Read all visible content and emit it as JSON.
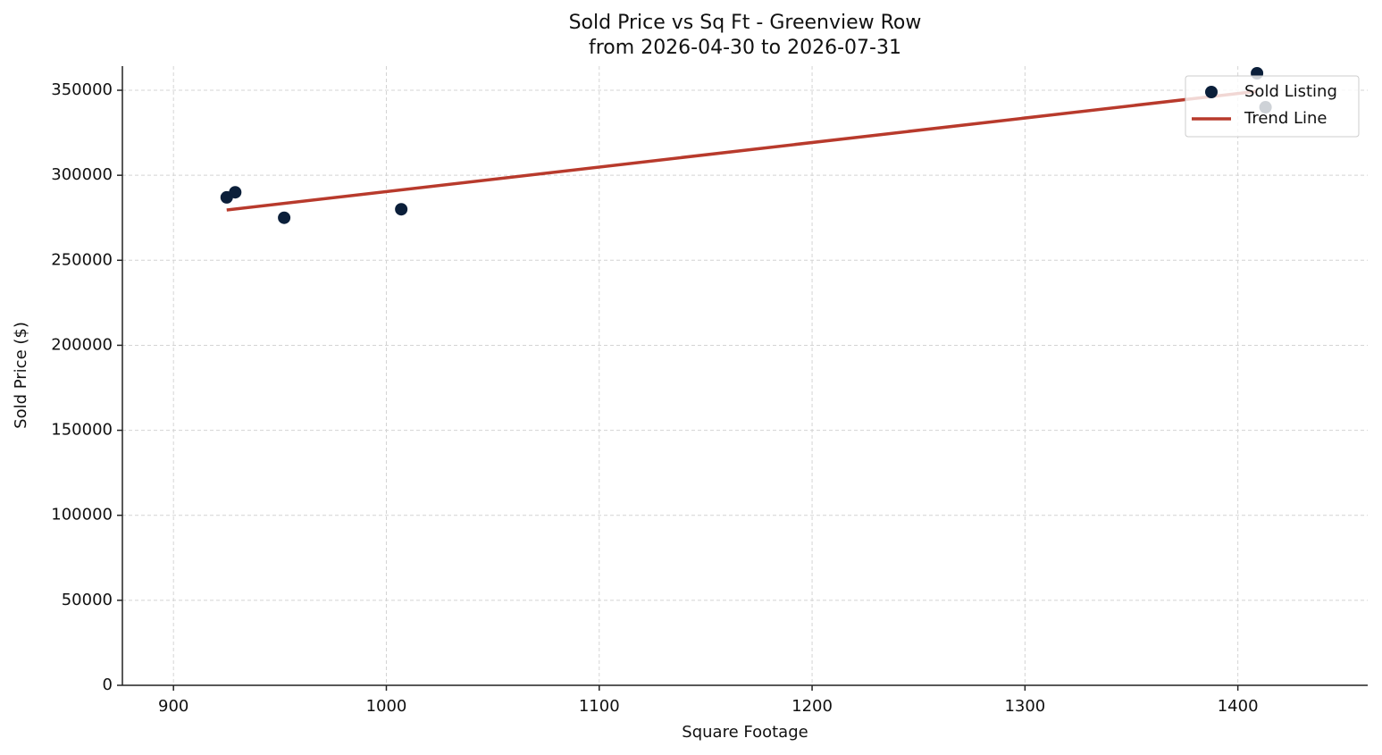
{
  "chart_data": {
    "type": "scatter",
    "title": "Sold Price vs Sq Ft - Greenview Row",
    "subtitle": "from 2026-04-30 to 2026-07-31",
    "x_label": "Square Footage",
    "y_label": "Sold Price ($)",
    "series": [
      {
        "name": "Sold Listing",
        "type": "scatter",
        "color": "#0b1f3a",
        "x": [
          925,
          929,
          952,
          1007,
          1409,
          1413
        ],
        "values": [
          287000,
          290000,
          275000,
          280000,
          360000,
          340000
        ]
      },
      {
        "name": "Trend Line",
        "type": "line",
        "color": "#b83a2c",
        "x": [
          925,
          1409
        ],
        "values": [
          279600,
          349400
        ]
      }
    ],
    "xlim": [
      876,
      1461
    ],
    "ylim": [
      0,
      364200
    ],
    "xticks": [
      900,
      1000,
      1100,
      1200,
      1300,
      1400
    ],
    "yticks": [
      0,
      50000,
      100000,
      150000,
      200000,
      250000,
      300000,
      350000
    ],
    "grid": true,
    "legend": "upper-right"
  }
}
